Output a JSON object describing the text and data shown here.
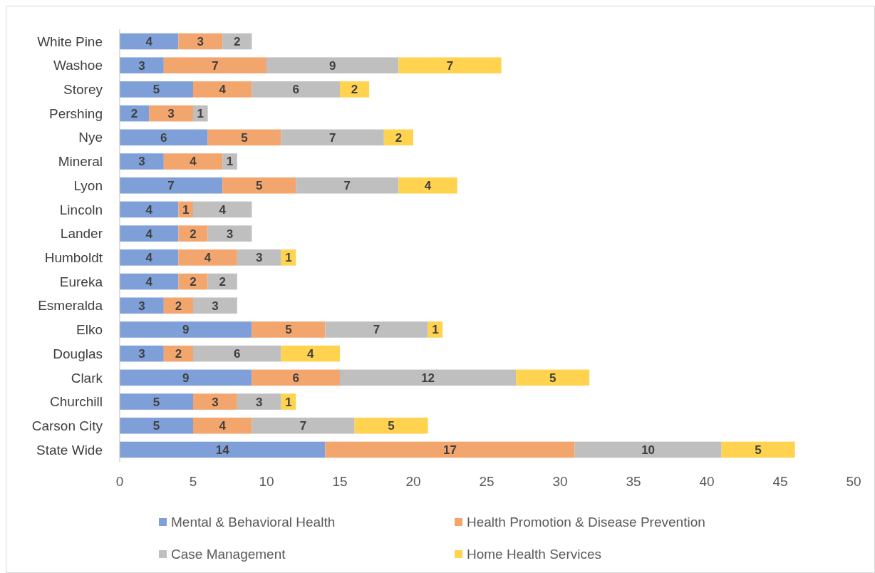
{
  "chart_data": {
    "type": "bar",
    "orientation": "horizontal",
    "stacked": true,
    "data_labels": true,
    "grid": false,
    "legend": "bottom",
    "categories": [
      "White Pine",
      "Washoe",
      "Storey",
      "Pershing",
      "Nye",
      "Mineral",
      "Lyon",
      "Lincoln",
      "Lander",
      "Humboldt",
      "Eureka",
      "Esmeralda",
      "Elko",
      "Douglas",
      "Clark",
      "Churchill",
      "Carson City",
      "State Wide"
    ],
    "xlim": [
      0,
      50
    ],
    "xticks": [
      0,
      5,
      10,
      15,
      20,
      25,
      30,
      35,
      40,
      45,
      50
    ],
    "series": [
      {
        "name": "Mental & Behavioral Health",
        "color": "#7f9fd9",
        "values": [
          4,
          3,
          5,
          2,
          6,
          3,
          7,
          4,
          4,
          4,
          4,
          3,
          9,
          3,
          9,
          5,
          5,
          14
        ]
      },
      {
        "name": "Health Promotion & Disease Prevention",
        "color": "#f3a56e",
        "values": [
          3,
          7,
          4,
          3,
          5,
          4,
          5,
          1,
          2,
          4,
          2,
          2,
          5,
          2,
          6,
          3,
          4,
          17
        ]
      },
      {
        "name": "Case Management",
        "color": "#bfbfbf",
        "values": [
          2,
          9,
          6,
          1,
          7,
          1,
          7,
          4,
          3,
          3,
          2,
          3,
          7,
          6,
          12,
          3,
          7,
          10
        ]
      },
      {
        "name": "Home Health Services",
        "color": "#ffd34f",
        "values": [
          null,
          7,
          2,
          null,
          2,
          null,
          4,
          null,
          null,
          1,
          null,
          null,
          1,
          4,
          5,
          1,
          5,
          5
        ]
      }
    ]
  }
}
